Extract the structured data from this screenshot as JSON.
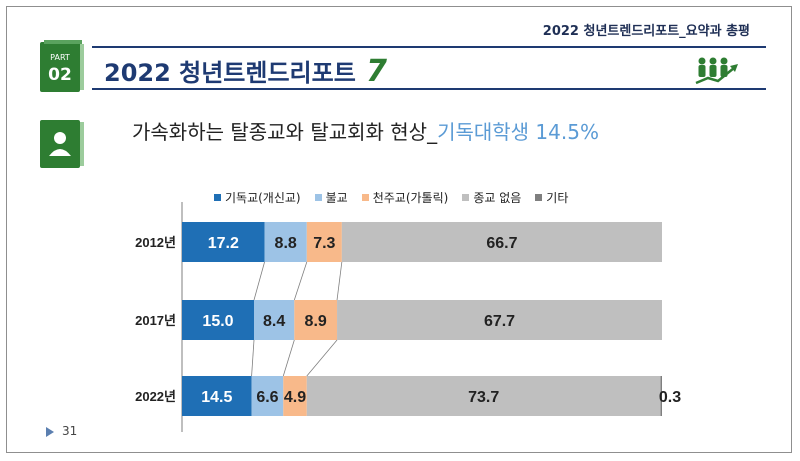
{
  "header": {
    "report_tag": "2022 청년트렌드리포트_요약과 총평",
    "part_label": "PART",
    "part_number": "02",
    "title": "2022 청년트렌드리포트",
    "title_number": "7"
  },
  "subtitle": {
    "main": "가속화하는 탈종교와 탈교회화 현상_",
    "highlight": "기독대학생 14.5%"
  },
  "page": {
    "number": "31"
  },
  "colors": {
    "navy": "#1e3a72",
    "green": "#2e7d32",
    "highlight": "#5b9bd5"
  },
  "chart_data": {
    "type": "bar",
    "orientation": "horizontal",
    "stacked": true,
    "categories": [
      "2012년",
      "2017년",
      "2022년"
    ],
    "series": [
      {
        "name": "기독교(개신교)",
        "color": "#1f6fb5",
        "label_color": "#ffffff",
        "values": [
          17.2,
          15.0,
          14.5
        ]
      },
      {
        "name": "불교",
        "color": "#9dc3e6",
        "label_color": "#222222",
        "values": [
          8.8,
          8.4,
          6.6
        ]
      },
      {
        "name": "천주교(가톨릭)",
        "color": "#f8b98a",
        "label_color": "#222222",
        "values": [
          7.3,
          8.9,
          4.9
        ]
      },
      {
        "name": "종교 없음",
        "color": "#bfbfbf",
        "label_color": "#222222",
        "values": [
          66.7,
          67.7,
          73.7
        ]
      },
      {
        "name": "기타",
        "color": "#7f7f7f",
        "label_color": "#222222",
        "values": [
          null,
          null,
          0.3
        ]
      }
    ],
    "data_labels": [
      [
        "17.2",
        "8.8",
        "7.3",
        "66.7",
        ""
      ],
      [
        "15.0",
        "8.4",
        "8.9",
        "67.7",
        ""
      ],
      [
        "14.5",
        "6.6",
        "4.9",
        "73.7",
        "0.3"
      ]
    ],
    "xlim": [
      0,
      100
    ],
    "grid": false,
    "legend": "top",
    "connector_lines": true
  }
}
